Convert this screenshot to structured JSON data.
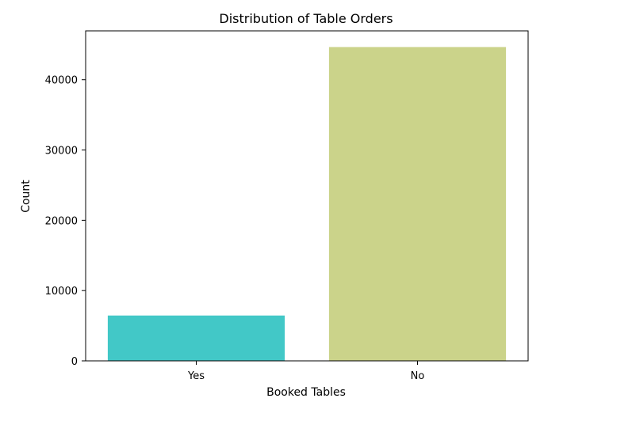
{
  "chart_data": {
    "type": "bar",
    "title": "Distribution of Table Orders",
    "xlabel": "Booked Tables",
    "ylabel": "Count",
    "categories": [
      "Yes",
      "No"
    ],
    "values": [
      6450,
      44650
    ],
    "colors": [
      "#42c8c7",
      "#cbd38a"
    ],
    "ylim": [
      0,
      46950
    ],
    "yticks": [
      0,
      10000,
      20000,
      30000,
      40000
    ],
    "grid": false,
    "legend": "none"
  }
}
